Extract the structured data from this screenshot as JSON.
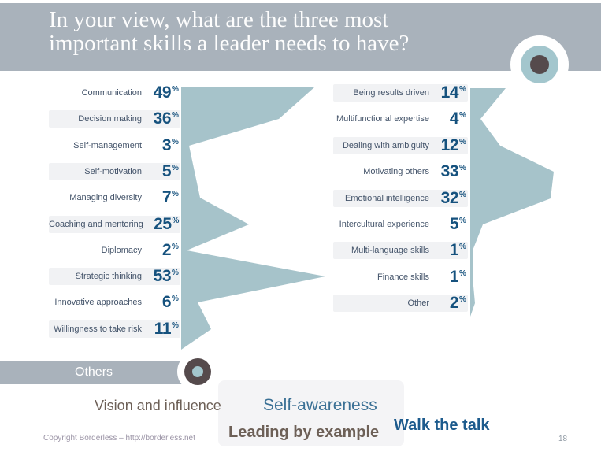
{
  "header": {
    "title": "In your view, what are the three most important skills a leader needs to have?",
    "title_lines": [
      "In your view, what are the three most",
      "important skills a leader needs to have?"
    ]
  },
  "chart_data": {
    "type": "bar",
    "unit": "%",
    "value_range": [
      0,
      53
    ],
    "orientation": "mirrored-area",
    "groups": [
      {
        "name": "left-column",
        "items": [
          {
            "label": "Communication",
            "value": 49
          },
          {
            "label": "Decision making",
            "value": 36
          },
          {
            "label": "Self-management",
            "value": 3
          },
          {
            "label": "Self-motivation",
            "value": 5
          },
          {
            "label": "Managing diversity",
            "value": 7
          },
          {
            "label": "Coaching and mentoring",
            "value": 25
          },
          {
            "label": "Diplomacy",
            "value": 2
          },
          {
            "label": "Strategic thinking",
            "value": 53
          },
          {
            "label": "Innovative approaches",
            "value": 6
          },
          {
            "label": "Willingness to take risk",
            "value": 11
          }
        ]
      },
      {
        "name": "right-column",
        "items": [
          {
            "label": "Being results driven",
            "value": 14
          },
          {
            "label": "Multifunctional expertise",
            "value": 4
          },
          {
            "label": "Dealing with ambiguity",
            "value": 12
          },
          {
            "label": "Motivating others",
            "value": 33
          },
          {
            "label": "Emotional intelligence",
            "value": 32
          },
          {
            "label": "Intercultural experience",
            "value": 5
          },
          {
            "label": "Multi-language skills",
            "value": 1
          },
          {
            "label": "Finance skills",
            "value": 1
          },
          {
            "label": "Other",
            "value": 2
          }
        ]
      }
    ]
  },
  "others": {
    "label": "Others",
    "keywords": [
      "Vision and influence",
      "Self-awareness",
      "Leading by example",
      "Walk the talk"
    ]
  },
  "footer": {
    "copyright": "Copyright Borderless – http://borderless.net",
    "page_number": "18"
  },
  "colors": {
    "header_band": "#a9b2bb",
    "accent_teal": "#a6c3ca",
    "row_band": "#f1f2f4",
    "label_text": "#44546a",
    "value_text": "#16527e",
    "dark_circle": "#554a4c",
    "keyword_brown": "#6d6057",
    "keyword_steel_blue": "#3a7095",
    "keyword_navy": "#1d5b8d"
  }
}
